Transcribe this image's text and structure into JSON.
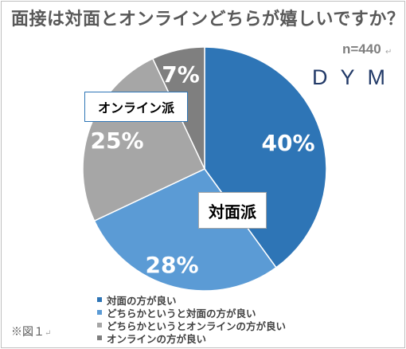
{
  "title": "面接は対面とオンラインどちらが嬉しいですか？",
  "sample_size": "n=440",
  "brand": "DYM",
  "caption": "※図１",
  "return_mark": "↵",
  "callouts": {
    "online": "オンライン派",
    "face_to_face": "対面派"
  },
  "chart_data": {
    "type": "pie",
    "title": "面接は対面とオンラインどちらが嬉しいですか？",
    "categories": [
      "対面の方が良い",
      "どちらかというと対面の方が良い",
      "どちらかというとオンラインの方が良い",
      "オンラインの方が良い"
    ],
    "values": [
      40,
      28,
      25,
      7
    ],
    "labels": [
      "40%",
      "28%",
      "25%",
      "7%"
    ],
    "colors": [
      "#2e75b6",
      "#5b9bd5",
      "#a6a6a6",
      "#7f7f7f"
    ],
    "label_colors": [
      "#ffffff",
      "#ffffff",
      "#ffffff",
      "#ffffff"
    ],
    "start": "12 o'clock",
    "direction": "clockwise",
    "legend_position": "bottom"
  }
}
